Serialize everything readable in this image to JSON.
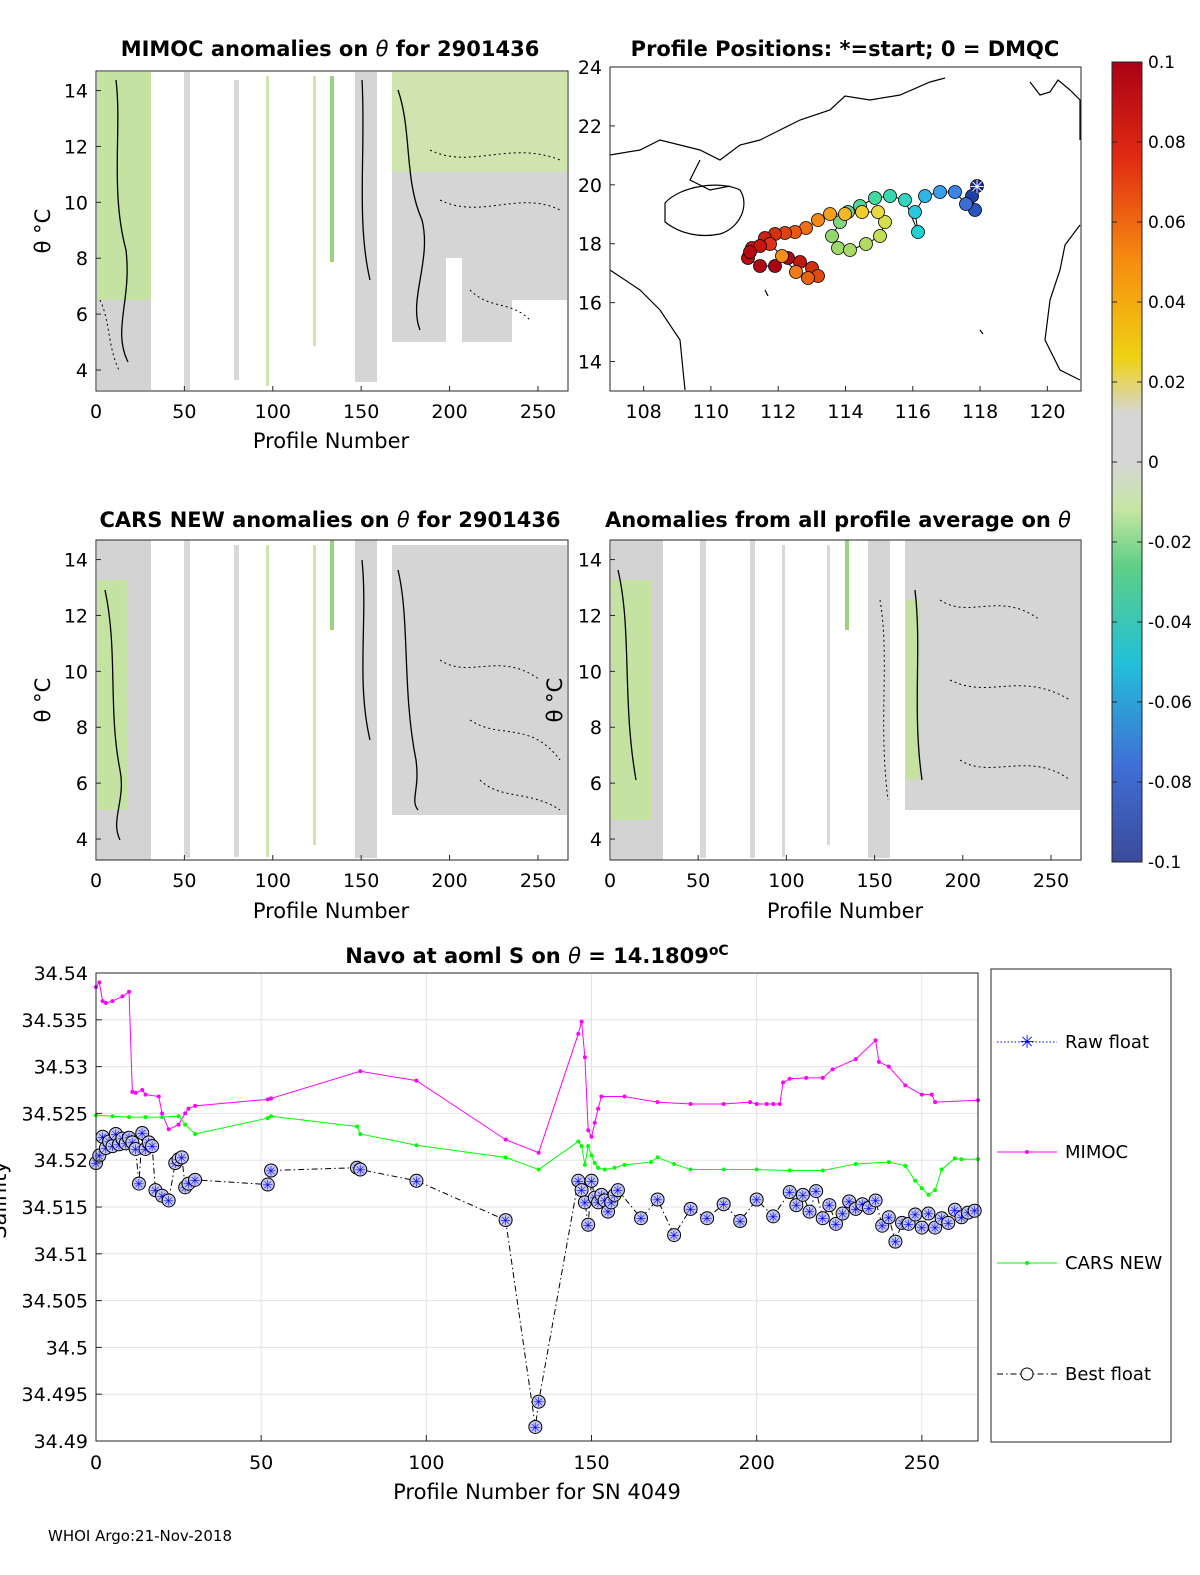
{
  "panels": {
    "mimoc": {
      "title_prefix": "MIMOC anomalies on",
      "title_symbol": "θ",
      "title_suffix": " for 2901436",
      "ylabel": "θ °C",
      "xlabel": "Profile Number",
      "xticks": [
        "0",
        "50",
        "100",
        "150",
        "200",
        "250"
      ],
      "yticks": [
        "4",
        "6",
        "8",
        "10",
        "12",
        "14"
      ]
    },
    "positions": {
      "title": "Profile Positions: *=start; 0 = DMQC",
      "xticks": [
        "108",
        "110",
        "112",
        "114",
        "116",
        "118",
        "120"
      ],
      "yticks": [
        "14",
        "16",
        "18",
        "20",
        "22",
        "24"
      ]
    },
    "cars": {
      "title_prefix": "CARS NEW anomalies on",
      "title_symbol": "θ",
      "title_suffix": "for 2901436",
      "ylabel": "θ °C",
      "xlabel": "Profile Number",
      "xticks": [
        "0",
        "50",
        "100",
        "150",
        "200",
        "250"
      ],
      "yticks": [
        "4",
        "6",
        "8",
        "10",
        "12",
        "14"
      ]
    },
    "allavg": {
      "title_prefix": "Anomalies from all profile average on",
      "title_symbol": "θ",
      "ylabel": "θ °C",
      "xlabel": "Profile Number",
      "xticks": [
        "0",
        "50",
        "100",
        "150",
        "200",
        "250"
      ],
      "yticks": [
        "4",
        "6",
        "8",
        "10",
        "12",
        "14"
      ]
    },
    "colorbar": {
      "ticks": [
        "0.1",
        "0.08",
        "0.06",
        "0.04",
        "0.02",
        "0",
        "-0.02",
        "-0.04",
        "-0.06",
        "-0.08",
        "-0.1"
      ]
    }
  },
  "chart_data": {
    "type": "line",
    "title": "Navo at aoml S on θ = 14.1809°C",
    "title_prefix": "Navo at aoml S on",
    "title_symbol": "θ",
    "title_value": "= 14.1809",
    "title_unit": "oC",
    "xlabel": "Profile Number for SN 4049",
    "ylabel": "Salinity",
    "xlim": [
      0,
      267
    ],
    "ylim": [
      34.49,
      34.54
    ],
    "xticks": [
      "0",
      "50",
      "100",
      "150",
      "200",
      "250"
    ],
    "yticks": [
      "34.49",
      "34.495",
      "34.5",
      "34.505",
      "34.51",
      "34.515",
      "34.52",
      "34.525",
      "34.53",
      "34.535",
      "34.54"
    ],
    "legend": [
      "Raw float",
      "MIMOC",
      "CARS NEW",
      "Best float"
    ],
    "series": [
      {
        "name": "MIMOC",
        "color": "#ff00ff",
        "x": [
          0,
          1,
          2,
          3,
          5,
          8,
          10,
          11,
          12,
          14,
          15,
          19,
          20,
          22,
          25,
          27,
          28,
          30,
          52,
          53,
          80,
          97,
          124,
          134,
          146,
          147,
          148,
          149,
          150,
          151,
          152,
          153,
          160,
          170,
          180,
          190,
          198,
          200,
          203,
          205,
          207,
          208,
          210,
          215,
          220,
          223,
          230,
          236,
          237,
          240,
          245,
          250,
          253,
          254,
          267
        ],
        "y": [
          34.5385,
          34.539,
          34.537,
          34.5368,
          34.537,
          34.5375,
          34.538,
          34.5273,
          34.5272,
          34.5275,
          34.527,
          34.5268,
          34.525,
          34.5233,
          34.5238,
          34.525,
          34.5255,
          34.5258,
          34.5265,
          34.5266,
          34.5295,
          34.5285,
          34.5222,
          34.5208,
          34.5335,
          34.5348,
          34.531,
          34.5232,
          34.5225,
          34.524,
          34.5255,
          34.5268,
          34.5268,
          34.5262,
          34.526,
          34.526,
          34.5262,
          34.526,
          34.526,
          34.526,
          34.526,
          34.5283,
          34.5287,
          34.5288,
          34.5288,
          34.5297,
          34.5308,
          34.5328,
          34.5305,
          34.53,
          34.528,
          34.527,
          34.527,
          34.5262,
          34.5264
        ]
      },
      {
        "name": "CARS NEW",
        "color": "#00ff00",
        "x": [
          0,
          5,
          10,
          15,
          20,
          25,
          27,
          30,
          52,
          53,
          79,
          80,
          97,
          124,
          134,
          146,
          147,
          148,
          149,
          150,
          151,
          152,
          154,
          157,
          160,
          168,
          170,
          175,
          180,
          190,
          200,
          210,
          220,
          230,
          240,
          245,
          248,
          250,
          252,
          254,
          256,
          260,
          262,
          267
        ],
        "y": [
          34.5248,
          34.5247,
          34.5246,
          34.5246,
          34.5246,
          34.5247,
          34.5238,
          34.5228,
          34.5245,
          34.5247,
          34.5236,
          34.5228,
          34.5216,
          34.5203,
          34.519,
          34.522,
          34.5215,
          34.5195,
          34.5215,
          34.5205,
          34.5197,
          34.5192,
          34.519,
          34.5192,
          34.5195,
          34.5198,
          34.5203,
          34.5196,
          34.519,
          34.519,
          34.519,
          34.5189,
          34.5189,
          34.5196,
          34.5198,
          34.5194,
          34.5178,
          34.517,
          34.5163,
          34.5168,
          34.519,
          34.5202,
          34.5201,
          34.5201
        ]
      },
      {
        "name": "Best float",
        "color": "#000000",
        "x": [
          0,
          1,
          2,
          3,
          4,
          5,
          6,
          7,
          8,
          9,
          10,
          11,
          12,
          13,
          14,
          15,
          16,
          17,
          18,
          20,
          22,
          24,
          25,
          26,
          27,
          28,
          30,
          52,
          53,
          79,
          80,
          97,
          124,
          133,
          134,
          146,
          147,
          148,
          149,
          150,
          151,
          152,
          153,
          154,
          155,
          156,
          157,
          158,
          165,
          170,
          175,
          180,
          185,
          190,
          195,
          200,
          205,
          210,
          212,
          214,
          216,
          218,
          220,
          222,
          224,
          226,
          228,
          230,
          232,
          234,
          236,
          238,
          240,
          242,
          244,
          246,
          248,
          250,
          252,
          254,
          256,
          258,
          260,
          262,
          264,
          266
        ],
        "y": [
          34.5197,
          34.5205,
          34.5225,
          34.5213,
          34.522,
          34.5215,
          34.5228,
          34.5217,
          34.5223,
          34.5218,
          34.5224,
          34.5219,
          34.5212,
          34.5175,
          34.5229,
          34.5212,
          34.5219,
          34.5215,
          34.5168,
          34.5162,
          34.5157,
          34.5197,
          34.5201,
          34.5203,
          34.5171,
          34.5175,
          34.5179,
          34.5174,
          34.5189,
          34.5192,
          34.519,
          34.5178,
          34.5136,
          34.4915,
          34.4942,
          34.5178,
          34.5168,
          34.5155,
          34.5131,
          34.5178,
          34.516,
          34.5155,
          34.5163,
          34.5157,
          34.5145,
          34.5155,
          34.5163,
          34.5168,
          34.5138,
          34.5158,
          34.512,
          34.5148,
          34.5138,
          34.5153,
          34.5135,
          34.5158,
          34.514,
          34.5166,
          34.5152,
          34.5163,
          34.5145,
          34.5167,
          34.5138,
          34.5152,
          34.5132,
          34.5143,
          34.5156,
          34.5148,
          34.5153,
          34.5149,
          34.5157,
          34.513,
          34.5139,
          34.5113,
          34.5133,
          34.5132,
          34.5142,
          34.5128,
          34.5143,
          34.5128,
          34.5138,
          34.5133,
          34.5147,
          34.5139,
          34.5144,
          34.5146
        ]
      }
    ]
  },
  "footer": "WHOI Argo:21-Nov-2018"
}
